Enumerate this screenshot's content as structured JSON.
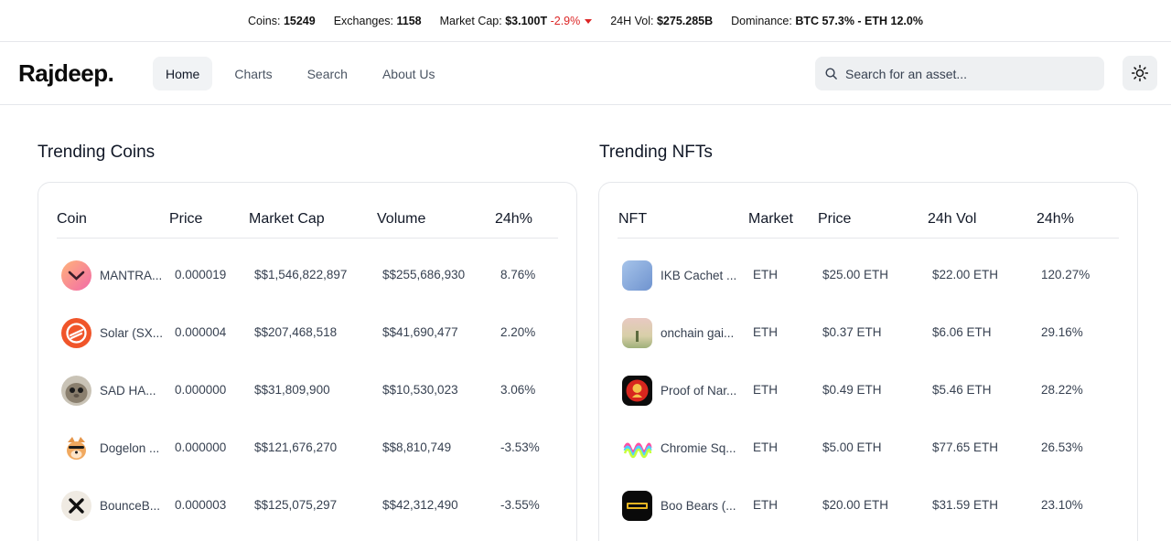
{
  "ticker": {
    "coins_label": "Coins:",
    "coins_value": "15249",
    "exchanges_label": "Exchanges:",
    "exchanges_value": "1158",
    "marketcap_label": "Market Cap:",
    "marketcap_value": "$3.100T",
    "marketcap_change": "-2.9%",
    "vol_label": "24H Vol:",
    "vol_value": "$275.285B",
    "dominance_label": "Dominance:",
    "dominance_value": "BTC 57.3% - ETH 12.0%"
  },
  "nav": {
    "brand": "Rajdeep.",
    "links": [
      "Home",
      "Charts",
      "Search",
      "About Us"
    ],
    "active": "Home",
    "search_placeholder": "Search for an asset..."
  },
  "icons": {
    "search": "search-icon",
    "theme": "sun-icon",
    "market_down": "caret-down-icon"
  },
  "colors": {
    "positive": "#16a34a",
    "negative": "#dc2626",
    "active_nav_bg": "#f1f3f5"
  },
  "trending_coins": {
    "title": "Trending Coins",
    "headers": [
      "Coin",
      "Price",
      "Market Cap",
      "Volume",
      "24h%"
    ],
    "rows": [
      {
        "name": "MANTRA...",
        "price": "0.000019",
        "market_cap": "$$1,546,822,897",
        "volume": "$$255,686,930",
        "change": "8.76%",
        "dir": "up"
      },
      {
        "name": "Solar (SX...",
        "price": "0.000004",
        "market_cap": "$$207,468,518",
        "volume": "$$41,690,477",
        "change": "2.20%",
        "dir": "up"
      },
      {
        "name": "SAD HA...",
        "price": "0.000000",
        "market_cap": "$$31,809,900",
        "volume": "$$10,530,023",
        "change": "3.06%",
        "dir": "up"
      },
      {
        "name": "Dogelon ...",
        "price": "0.000000",
        "market_cap": "$$121,676,270",
        "volume": "$$8,810,749",
        "change": "-3.53%",
        "dir": "down"
      },
      {
        "name": "BounceB...",
        "price": "0.000003",
        "market_cap": "$$125,075,297",
        "volume": "$$42,312,490",
        "change": "-3.55%",
        "dir": "down"
      }
    ]
  },
  "trending_nfts": {
    "title": "Trending NFTs",
    "headers": [
      "NFT",
      "Market",
      "Price",
      "24h Vol",
      "24h%"
    ],
    "rows": [
      {
        "name": "IKB Cachet ...",
        "market": "ETH",
        "price": "$25.00 ETH",
        "vol": "$22.00 ETH",
        "change": "120.27%"
      },
      {
        "name": "onchain gai...",
        "market": "ETH",
        "price": "$0.37 ETH",
        "vol": "$6.06 ETH",
        "change": "29.16%"
      },
      {
        "name": "Proof of Nar...",
        "market": "ETH",
        "price": "$0.49 ETH",
        "vol": "$5.46 ETH",
        "change": "28.22%"
      },
      {
        "name": "Chromie Sq...",
        "market": "ETH",
        "price": "$5.00 ETH",
        "vol": "$77.65 ETH",
        "change": "26.53%"
      },
      {
        "name": "Boo Bears (...",
        "market": "ETH",
        "price": "$20.00 ETH",
        "vol": "$31.59 ETH",
        "change": "23.10%"
      }
    ]
  }
}
